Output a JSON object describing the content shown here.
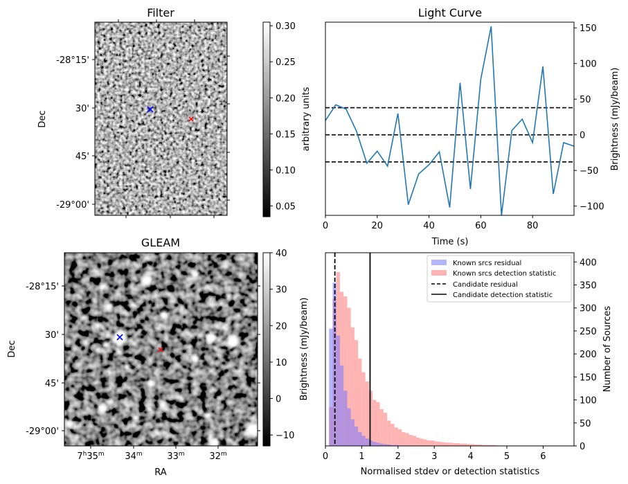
{
  "filter_panel": {
    "title": "Filter",
    "ylabel": "Dec",
    "dec_ticks": [
      "-28°15'",
      "30'",
      "45'",
      "-29°00'"
    ],
    "colorbar_label": "arbitrary units",
    "colorbar_ticks": [
      "0.30",
      "0.25",
      "0.20",
      "0.15",
      "0.10",
      "0.05"
    ],
    "colorbar_range": [
      0.035,
      0.305
    ],
    "candidate_marker": "x",
    "candidate_color": "#0000ff",
    "reference_color": "#ff0000"
  },
  "gleam_panel": {
    "title": "GLEAM",
    "ylabel": "Dec",
    "xlabel": "RA",
    "dec_ticks": [
      "-28°15'",
      "30'",
      "45'",
      "-29°00'"
    ],
    "ra_ticks": [
      {
        "main": "7",
        "sup1": "h",
        "mid": "35",
        "sup2": "m"
      },
      {
        "main": "34",
        "sup2": "m"
      },
      {
        "main": "33",
        "sup2": "m"
      },
      {
        "main": "32",
        "sup2": "m"
      }
    ],
    "colorbar_label": "Brightness (mJy/beam)",
    "colorbar_ticks": [
      "40",
      "30",
      "20",
      "10",
      "0",
      "−10"
    ],
    "colorbar_range": [
      -13,
      40
    ]
  },
  "chart_data": [
    {
      "type": "line",
      "title": "Light Curve",
      "xlabel": "Time (s)",
      "ylabel": "Brightness (mJy/beam)",
      "xlim": [
        0,
        96
      ],
      "ylim": [
        -113,
        158
      ],
      "x_ticks": [
        0,
        20,
        40,
        60,
        80
      ],
      "y_ticks": [
        -100,
        -50,
        0,
        50,
        100,
        150
      ],
      "y_tick_labels": [
        "−100",
        "−50",
        "0",
        "50",
        "100",
        "150"
      ],
      "line_color": "#1f77b4",
      "x": [
        0,
        4,
        8,
        12,
        16,
        20,
        24,
        28,
        32,
        36,
        40,
        44,
        48,
        52,
        56,
        60,
        64,
        68,
        72,
        76,
        80,
        84,
        88,
        92,
        96
      ],
      "y": [
        20,
        42,
        36,
        5,
        -40,
        -23,
        -44,
        30,
        -98,
        -55,
        -42,
        -24,
        -102,
        73,
        -76,
        78,
        152,
        -113,
        6,
        22,
        -11,
        96,
        -83,
        -11,
        -16
      ],
      "hlines": [
        {
          "y": 38,
          "style": "dashed",
          "color": "#000000"
        },
        {
          "y": 0,
          "style": "dashed",
          "color": "#000000"
        },
        {
          "y": -38,
          "style": "dashed",
          "color": "#000000"
        }
      ]
    },
    {
      "type": "histogram",
      "xlabel": "Normalised stdev or detection statistics",
      "ylabel": "Number of Sources",
      "xlim": [
        0,
        6.85
      ],
      "ylim": [
        0,
        420
      ],
      "x_ticks": [
        0,
        1,
        2,
        3,
        4,
        5,
        6
      ],
      "y_ticks": [
        0,
        50,
        100,
        150,
        200,
        250,
        300,
        350,
        400
      ],
      "bin_width": 0.1,
      "series": [
        {
          "name": "Known srcs residual",
          "color": "#7777ff",
          "bin_start": 0.0,
          "values": [
            0,
            255,
            355,
            240,
            175,
            120,
            82,
            58,
            42,
            30,
            22,
            16,
            12,
            9,
            7,
            5,
            4,
            3,
            2,
            2,
            1,
            1,
            1,
            1,
            0
          ]
        },
        {
          "name": "Known srcs detection statistic",
          "color": "#ff7777",
          "bin_start": 0.0,
          "values": [
            0,
            85,
            320,
            378,
            335,
            325,
            300,
            258,
            230,
            190,
            160,
            140,
            120,
            100,
            95,
            80,
            72,
            55,
            48,
            40,
            36,
            30,
            28,
            24,
            22,
            18,
            16,
            14,
            12,
            12,
            10,
            9,
            8,
            7,
            7,
            6,
            6,
            5,
            5,
            4,
            4,
            3,
            3,
            2,
            2,
            2,
            2,
            1,
            1,
            1,
            1,
            1,
            1,
            1,
            1,
            1,
            1,
            1,
            1,
            1,
            1,
            1,
            1,
            1,
            1,
            1,
            1,
            1
          ]
        }
      ],
      "vlines": [
        {
          "name": "Candidate residual",
          "x": 0.26,
          "style": "dashed",
          "color": "#000000"
        },
        {
          "name": "Candidate detection statistic",
          "x": 1.23,
          "style": "solid",
          "color": "#000000"
        }
      ],
      "legend_position": "upper right",
      "legend": [
        "Known srcs residual",
        "Known srcs detection statistic",
        "Candidate residual",
        "Candidate detection statistic"
      ]
    }
  ]
}
